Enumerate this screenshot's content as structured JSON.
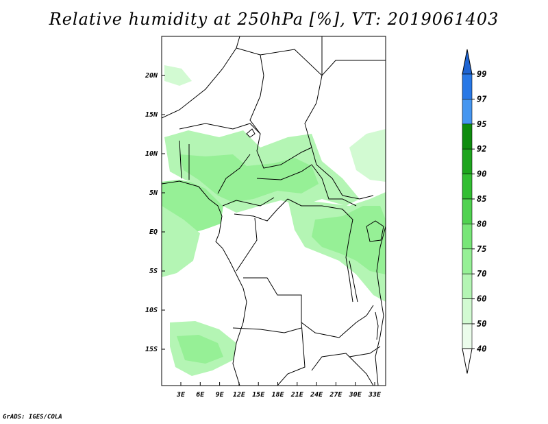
{
  "title": "Relative humidity at 250hPa [%], VT: 2019061403",
  "credit": "GrADS: IGES/COLA",
  "lat_labels": [
    "20N",
    "15N",
    "10N",
    "5N",
    "EQ",
    "5S",
    "10S",
    "15S"
  ],
  "lon_labels": [
    "3E",
    "6E",
    "9E",
    "12E",
    "15E",
    "18E",
    "21E",
    "24E",
    "27E",
    "30E",
    "33E"
  ],
  "colorbar": {
    "labels": [
      "99",
      "97",
      "95",
      "92",
      "90",
      "85",
      "80",
      "75",
      "70",
      "60",
      "50",
      "40"
    ],
    "colors": [
      "#1e64d2",
      "#2878e6",
      "#4696f0",
      "#0e8c0e",
      "#1ea51e",
      "#32be32",
      "#50d250",
      "#78e678",
      "#96f096",
      "#b4f5b4",
      "#d2fad2",
      "#ebfceb"
    ]
  },
  "map_colors": {
    "light": "#d2fad2",
    "mid": "#b4f5b4",
    "strong": "#96f096"
  }
}
